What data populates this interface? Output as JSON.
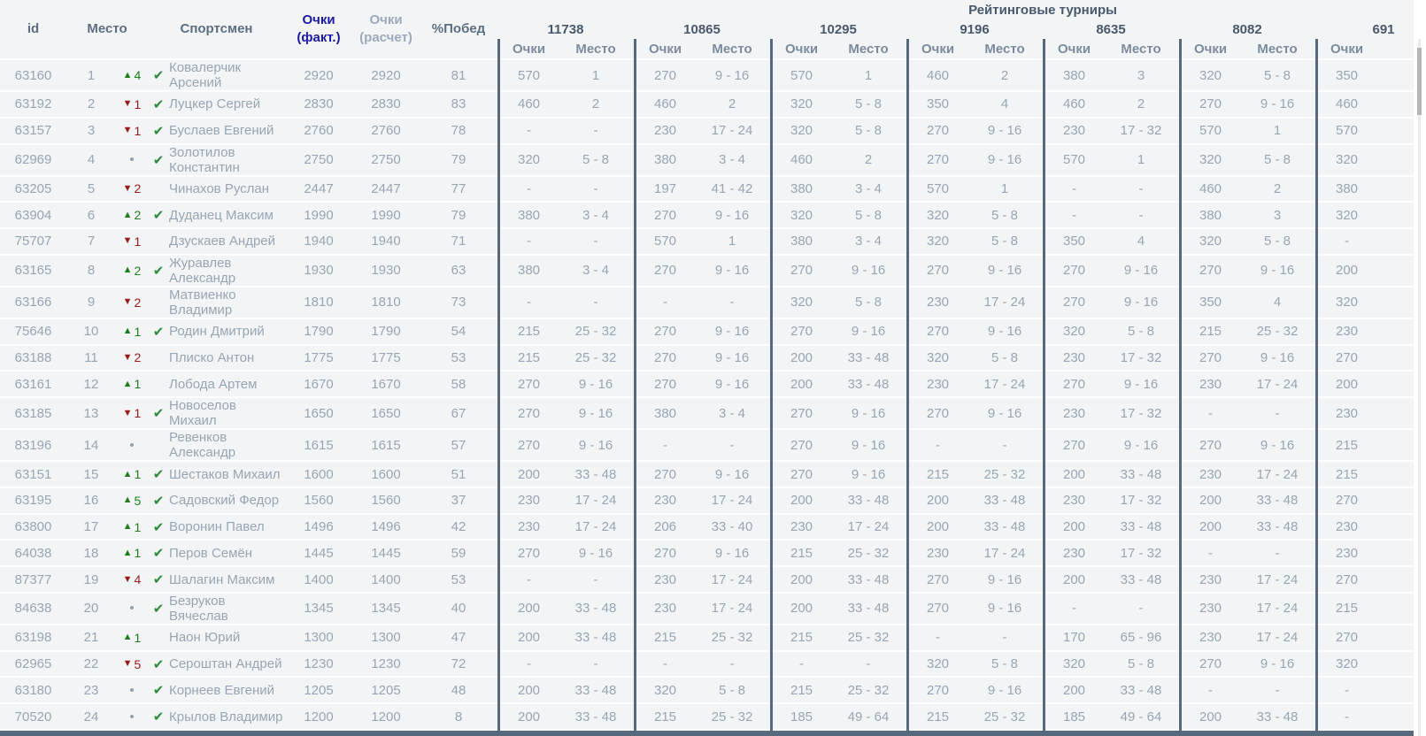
{
  "table": {
    "group_header": "Рейтинговые турниры",
    "columns": {
      "id": "id",
      "place": "Место",
      "athlete": "Спортсмен",
      "points_fact_lines": [
        "Очки",
        "(факт.)"
      ],
      "points_calc_lines": [
        "Очки",
        "(расчет)"
      ],
      "win_pct": "%Побед",
      "sub_points": "Очки",
      "sub_place": "Место"
    },
    "tournaments": [
      "11738",
      "10865",
      "10295",
      "9196",
      "8635",
      "8082",
      "691"
    ],
    "rows": [
      {
        "id": "63160",
        "place": "1",
        "trend": "up",
        "trend_value": "4",
        "confirmed": true,
        "athlete": "Ковалерчик Арсений",
        "points_fact": "2920",
        "points_calc": "2920",
        "win_pct": "81",
        "results": [
          [
            "570",
            "1"
          ],
          [
            "270",
            "9 - 16"
          ],
          [
            "570",
            "1"
          ],
          [
            "460",
            "2"
          ],
          [
            "380",
            "3"
          ],
          [
            "320",
            "5 - 8"
          ],
          [
            "350",
            ""
          ]
        ]
      },
      {
        "id": "63192",
        "place": "2",
        "trend": "down",
        "trend_value": "1",
        "confirmed": true,
        "athlete": "Луцкер Сергей",
        "points_fact": "2830",
        "points_calc": "2830",
        "win_pct": "83",
        "results": [
          [
            "460",
            "2"
          ],
          [
            "460",
            "2"
          ],
          [
            "320",
            "5 - 8"
          ],
          [
            "350",
            "4"
          ],
          [
            "460",
            "2"
          ],
          [
            "270",
            "9 - 16"
          ],
          [
            "460",
            ""
          ]
        ]
      },
      {
        "id": "63157",
        "place": "3",
        "trend": "down",
        "trend_value": "1",
        "confirmed": true,
        "athlete": "Буслаев Евгений",
        "points_fact": "2760",
        "points_calc": "2760",
        "win_pct": "78",
        "results": [
          [
            "-",
            "-"
          ],
          [
            "230",
            "17 - 24"
          ],
          [
            "320",
            "5 - 8"
          ],
          [
            "270",
            "9 - 16"
          ],
          [
            "230",
            "17 - 32"
          ],
          [
            "570",
            "1"
          ],
          [
            "570",
            ""
          ]
        ]
      },
      {
        "id": "62969",
        "place": "4",
        "trend": "none",
        "trend_value": "",
        "confirmed": true,
        "athlete": "Золотилов Константин",
        "points_fact": "2750",
        "points_calc": "2750",
        "win_pct": "79",
        "results": [
          [
            "320",
            "5 - 8"
          ],
          [
            "380",
            "3 - 4"
          ],
          [
            "460",
            "2"
          ],
          [
            "270",
            "9 - 16"
          ],
          [
            "570",
            "1"
          ],
          [
            "320",
            "5 - 8"
          ],
          [
            "320",
            ""
          ]
        ]
      },
      {
        "id": "63205",
        "place": "5",
        "trend": "down",
        "trend_value": "2",
        "confirmed": false,
        "athlete": "Чинахов Руслан",
        "points_fact": "2447",
        "points_calc": "2447",
        "win_pct": "77",
        "results": [
          [
            "-",
            "-"
          ],
          [
            "197",
            "41 - 42"
          ],
          [
            "380",
            "3 - 4"
          ],
          [
            "570",
            "1"
          ],
          [
            "-",
            "-"
          ],
          [
            "460",
            "2"
          ],
          [
            "380",
            ""
          ]
        ]
      },
      {
        "id": "63904",
        "place": "6",
        "trend": "up",
        "trend_value": "2",
        "confirmed": true,
        "athlete": "Дуданец Максим",
        "points_fact": "1990",
        "points_calc": "1990",
        "win_pct": "79",
        "results": [
          [
            "380",
            "3 - 4"
          ],
          [
            "270",
            "9 - 16"
          ],
          [
            "320",
            "5 - 8"
          ],
          [
            "320",
            "5 - 8"
          ],
          [
            "-",
            "-"
          ],
          [
            "380",
            "3"
          ],
          [
            "320",
            ""
          ]
        ]
      },
      {
        "id": "75707",
        "place": "7",
        "trend": "down",
        "trend_value": "1",
        "confirmed": false,
        "athlete": "Дзускаев Андрей",
        "points_fact": "1940",
        "points_calc": "1940",
        "win_pct": "71",
        "results": [
          [
            "-",
            "-"
          ],
          [
            "570",
            "1"
          ],
          [
            "380",
            "3 - 4"
          ],
          [
            "320",
            "5 - 8"
          ],
          [
            "350",
            "4"
          ],
          [
            "320",
            "5 - 8"
          ],
          [
            "-",
            ""
          ]
        ]
      },
      {
        "id": "63165",
        "place": "8",
        "trend": "up",
        "trend_value": "2",
        "confirmed": true,
        "athlete": "Журавлев Александр",
        "points_fact": "1930",
        "points_calc": "1930",
        "win_pct": "63",
        "results": [
          [
            "380",
            "3 - 4"
          ],
          [
            "270",
            "9 - 16"
          ],
          [
            "270",
            "9 - 16"
          ],
          [
            "270",
            "9 - 16"
          ],
          [
            "270",
            "9 - 16"
          ],
          [
            "270",
            "9 - 16"
          ],
          [
            "200",
            ""
          ]
        ]
      },
      {
        "id": "63166",
        "place": "9",
        "trend": "down",
        "trend_value": "2",
        "confirmed": false,
        "athlete": "Матвиенко Владимир",
        "points_fact": "1810",
        "points_calc": "1810",
        "win_pct": "73",
        "results": [
          [
            "-",
            "-"
          ],
          [
            "-",
            "-"
          ],
          [
            "320",
            "5 - 8"
          ],
          [
            "230",
            "17 - 24"
          ],
          [
            "270",
            "9 - 16"
          ],
          [
            "350",
            "4"
          ],
          [
            "320",
            ""
          ]
        ]
      },
      {
        "id": "75646",
        "place": "10",
        "trend": "up",
        "trend_value": "1",
        "confirmed": true,
        "athlete": "Родин Дмитрий",
        "points_fact": "1790",
        "points_calc": "1790",
        "win_pct": "54",
        "results": [
          [
            "215",
            "25 - 32"
          ],
          [
            "270",
            "9 - 16"
          ],
          [
            "270",
            "9 - 16"
          ],
          [
            "270",
            "9 - 16"
          ],
          [
            "320",
            "5 - 8"
          ],
          [
            "215",
            "25 - 32"
          ],
          [
            "230",
            ""
          ]
        ]
      },
      {
        "id": "63188",
        "place": "11",
        "trend": "down",
        "trend_value": "2",
        "confirmed": false,
        "athlete": "Плиско Антон",
        "points_fact": "1775",
        "points_calc": "1775",
        "win_pct": "53",
        "results": [
          [
            "215",
            "25 - 32"
          ],
          [
            "270",
            "9 - 16"
          ],
          [
            "200",
            "33 - 48"
          ],
          [
            "320",
            "5 - 8"
          ],
          [
            "230",
            "17 - 32"
          ],
          [
            "270",
            "9 - 16"
          ],
          [
            "270",
            ""
          ]
        ]
      },
      {
        "id": "63161",
        "place": "12",
        "trend": "up",
        "trend_value": "1",
        "confirmed": false,
        "athlete": "Лобода Артем",
        "points_fact": "1670",
        "points_calc": "1670",
        "win_pct": "58",
        "results": [
          [
            "270",
            "9 - 16"
          ],
          [
            "270",
            "9 - 16"
          ],
          [
            "200",
            "33 - 48"
          ],
          [
            "230",
            "17 - 24"
          ],
          [
            "270",
            "9 - 16"
          ],
          [
            "230",
            "17 - 24"
          ],
          [
            "200",
            ""
          ]
        ]
      },
      {
        "id": "63185",
        "place": "13",
        "trend": "down",
        "trend_value": "1",
        "confirmed": true,
        "athlete": "Новоселов Михаил",
        "points_fact": "1650",
        "points_calc": "1650",
        "win_pct": "67",
        "results": [
          [
            "270",
            "9 - 16"
          ],
          [
            "380",
            "3 - 4"
          ],
          [
            "270",
            "9 - 16"
          ],
          [
            "270",
            "9 - 16"
          ],
          [
            "230",
            "17 - 32"
          ],
          [
            "-",
            "-"
          ],
          [
            "230",
            ""
          ]
        ]
      },
      {
        "id": "83196",
        "place": "14",
        "trend": "none",
        "trend_value": "",
        "confirmed": false,
        "athlete": "Ревенков Александр",
        "points_fact": "1615",
        "points_calc": "1615",
        "win_pct": "57",
        "results": [
          [
            "270",
            "9 - 16"
          ],
          [
            "-",
            "-"
          ],
          [
            "270",
            "9 - 16"
          ],
          [
            "-",
            "-"
          ],
          [
            "270",
            "9 - 16"
          ],
          [
            "270",
            "9 - 16"
          ],
          [
            "215",
            ""
          ]
        ]
      },
      {
        "id": "63151",
        "place": "15",
        "trend": "up",
        "trend_value": "1",
        "confirmed": true,
        "athlete": "Шестаков Михаил",
        "points_fact": "1600",
        "points_calc": "1600",
        "win_pct": "51",
        "results": [
          [
            "200",
            "33 - 48"
          ],
          [
            "270",
            "9 - 16"
          ],
          [
            "270",
            "9 - 16"
          ],
          [
            "215",
            "25 - 32"
          ],
          [
            "200",
            "33 - 48"
          ],
          [
            "230",
            "17 - 24"
          ],
          [
            "215",
            ""
          ]
        ]
      },
      {
        "id": "63195",
        "place": "16",
        "trend": "up",
        "trend_value": "5",
        "confirmed": true,
        "athlete": "Садовский Федор",
        "points_fact": "1560",
        "points_calc": "1560",
        "win_pct": "37",
        "results": [
          [
            "230",
            "17 - 24"
          ],
          [
            "230",
            "17 - 24"
          ],
          [
            "200",
            "33 - 48"
          ],
          [
            "200",
            "33 - 48"
          ],
          [
            "230",
            "17 - 32"
          ],
          [
            "200",
            "33 - 48"
          ],
          [
            "270",
            ""
          ]
        ]
      },
      {
        "id": "63800",
        "place": "17",
        "trend": "up",
        "trend_value": "1",
        "confirmed": true,
        "athlete": "Воронин Павел",
        "points_fact": "1496",
        "points_calc": "1496",
        "win_pct": "42",
        "results": [
          [
            "230",
            "17 - 24"
          ],
          [
            "206",
            "33 - 40"
          ],
          [
            "230",
            "17 - 24"
          ],
          [
            "200",
            "33 - 48"
          ],
          [
            "200",
            "33 - 48"
          ],
          [
            "200",
            "33 - 48"
          ],
          [
            "230",
            ""
          ]
        ]
      },
      {
        "id": "64038",
        "place": "18",
        "trend": "up",
        "trend_value": "1",
        "confirmed": true,
        "athlete": "Перов Семён",
        "points_fact": "1445",
        "points_calc": "1445",
        "win_pct": "59",
        "results": [
          [
            "270",
            "9 - 16"
          ],
          [
            "270",
            "9 - 16"
          ],
          [
            "215",
            "25 - 32"
          ],
          [
            "230",
            "17 - 24"
          ],
          [
            "230",
            "17 - 32"
          ],
          [
            "-",
            "-"
          ],
          [
            "230",
            ""
          ]
        ]
      },
      {
        "id": "87377",
        "place": "19",
        "trend": "down",
        "trend_value": "4",
        "confirmed": true,
        "athlete": "Шалагин Максим",
        "points_fact": "1400",
        "points_calc": "1400",
        "win_pct": "53",
        "results": [
          [
            "-",
            "-"
          ],
          [
            "230",
            "17 - 24"
          ],
          [
            "200",
            "33 - 48"
          ],
          [
            "270",
            "9 - 16"
          ],
          [
            "200",
            "33 - 48"
          ],
          [
            "230",
            "17 - 24"
          ],
          [
            "270",
            ""
          ]
        ]
      },
      {
        "id": "84638",
        "place": "20",
        "trend": "none",
        "trend_value": "",
        "confirmed": true,
        "athlete": "Безруков Вячеслав",
        "points_fact": "1345",
        "points_calc": "1345",
        "win_pct": "40",
        "results": [
          [
            "200",
            "33 - 48"
          ],
          [
            "230",
            "17 - 24"
          ],
          [
            "200",
            "33 - 48"
          ],
          [
            "270",
            "9 - 16"
          ],
          [
            "-",
            "-"
          ],
          [
            "230",
            "17 - 24"
          ],
          [
            "215",
            ""
          ]
        ]
      },
      {
        "id": "63198",
        "place": "21",
        "trend": "up",
        "trend_value": "1",
        "confirmed": false,
        "athlete": "Наон Юрий",
        "points_fact": "1300",
        "points_calc": "1300",
        "win_pct": "47",
        "results": [
          [
            "200",
            "33 - 48"
          ],
          [
            "215",
            "25 - 32"
          ],
          [
            "215",
            "25 - 32"
          ],
          [
            "-",
            "-"
          ],
          [
            "170",
            "65 - 96"
          ],
          [
            "230",
            "17 - 24"
          ],
          [
            "270",
            ""
          ]
        ]
      },
      {
        "id": "62965",
        "place": "22",
        "trend": "down",
        "trend_value": "5",
        "confirmed": true,
        "athlete": "Сероштан Андрей",
        "points_fact": "1230",
        "points_calc": "1230",
        "win_pct": "72",
        "results": [
          [
            "-",
            "-"
          ],
          [
            "-",
            "-"
          ],
          [
            "-",
            "-"
          ],
          [
            "320",
            "5 - 8"
          ],
          [
            "320",
            "5 - 8"
          ],
          [
            "270",
            "9 - 16"
          ],
          [
            "320",
            ""
          ]
        ]
      },
      {
        "id": "63180",
        "place": "23",
        "trend": "none",
        "trend_value": "",
        "confirmed": true,
        "athlete": "Корнеев Евгений",
        "points_fact": "1205",
        "points_calc": "1205",
        "win_pct": "48",
        "results": [
          [
            "200",
            "33 - 48"
          ],
          [
            "320",
            "5 - 8"
          ],
          [
            "215",
            "25 - 32"
          ],
          [
            "270",
            "9 - 16"
          ],
          [
            "200",
            "33 - 48"
          ],
          [
            "-",
            "-"
          ],
          [
            "-",
            ""
          ]
        ]
      },
      {
        "id": "70520",
        "place": "24",
        "trend": "none",
        "trend_value": "",
        "confirmed": true,
        "athlete": "Крылов Владимир",
        "points_fact": "1200",
        "points_calc": "1200",
        "win_pct": "8",
        "results": [
          [
            "200",
            "33 - 48"
          ],
          [
            "215",
            "25 - 32"
          ],
          [
            "185",
            "49 - 64"
          ],
          [
            "215",
            "25 - 32"
          ],
          [
            "185",
            "49 - 64"
          ],
          [
            "200",
            "33 - 48"
          ],
          [
            "-",
            ""
          ]
        ]
      }
    ]
  },
  "icons": {
    "up": "▲",
    "down": "▼",
    "none": "•",
    "check": "✔"
  },
  "colors": {
    "accent_navy": "#1c19a3",
    "header_text": "#5c6f82",
    "group_header_text": "#48596d",
    "subheader_text": "#7b8c9e",
    "data_text": "#98a6b4",
    "positive": "#1e7e1e",
    "negative": "#9a1a1a",
    "check_green": "#2e8b3e",
    "divider": "#57697c",
    "row_bg": "#f3f4f5"
  }
}
